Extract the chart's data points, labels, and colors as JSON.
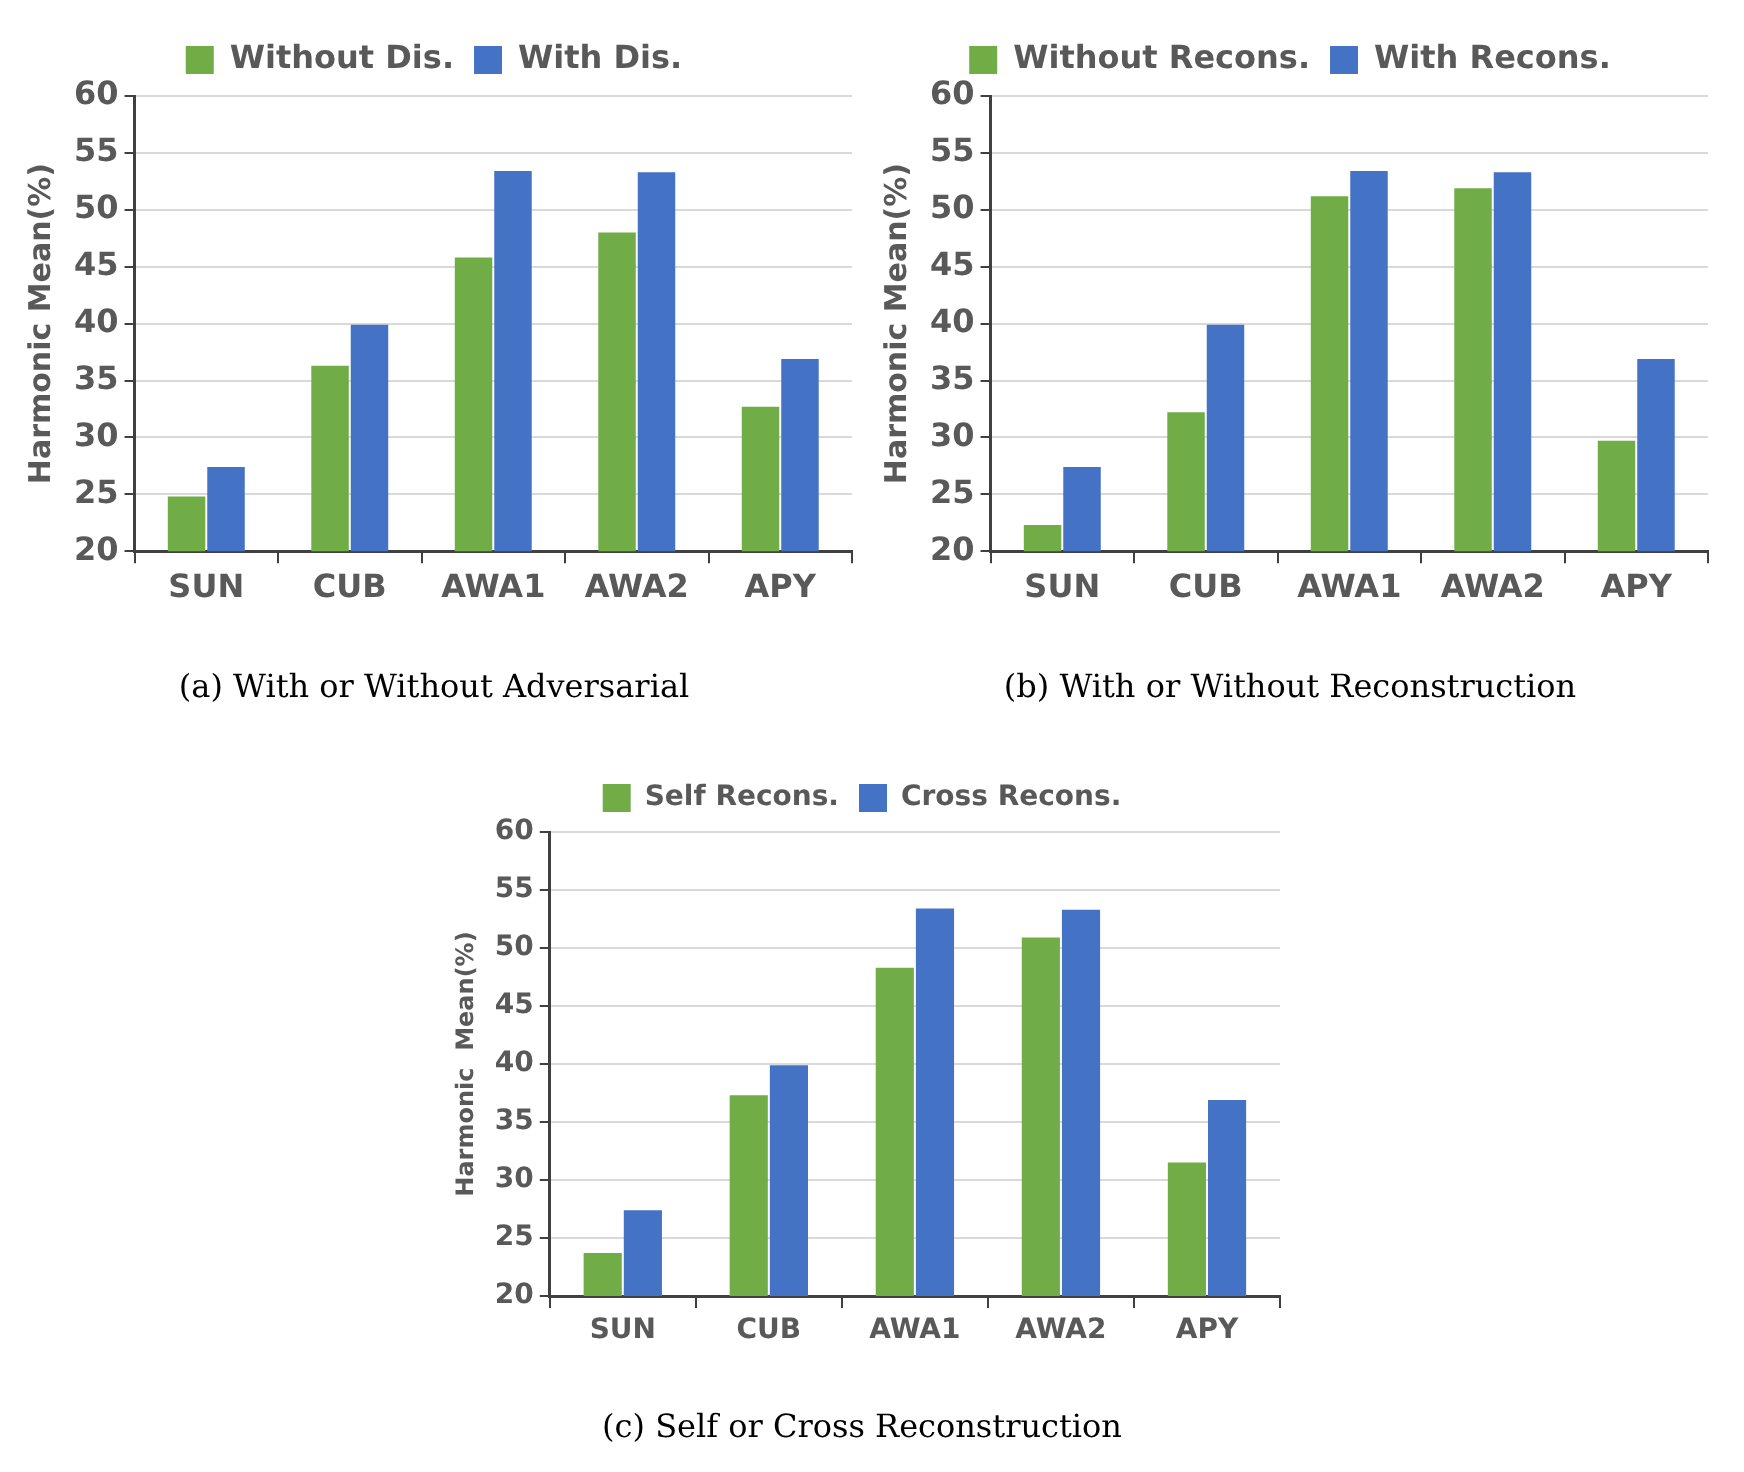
{
  "chart_data": [
    {
      "type": "bar",
      "title": "(a) With or Without Adversarial",
      "ylabel": "Harmonic Mean(%)",
      "categories": [
        "SUN",
        "CUB",
        "AWA1",
        "AWA2",
        "APY"
      ],
      "series": [
        {
          "name": "Without Dis.",
          "color": "#70ad47",
          "values": [
            24.8,
            36.3,
            45.8,
            48.0,
            32.7
          ]
        },
        {
          "name": "With Dis.",
          "color": "#4472c4",
          "values": [
            27.4,
            39.9,
            53.4,
            53.3,
            36.9
          ]
        }
      ],
      "ylim": [
        20,
        60
      ],
      "yticks": [
        20,
        25,
        30,
        35,
        40,
        45,
        50,
        55,
        60
      ],
      "grid": "y",
      "legend": "top"
    },
    {
      "type": "bar",
      "title": "(b) With or Without Reconstruction",
      "ylabel": "Harmonic Mean(%)",
      "categories": [
        "SUN",
        "CUB",
        "AWA1",
        "AWA2",
        "APY"
      ],
      "series": [
        {
          "name": "Without Recons.",
          "color": "#70ad47",
          "values": [
            22.3,
            32.2,
            51.2,
            51.9,
            29.7
          ]
        },
        {
          "name": "With Recons.",
          "color": "#4472c4",
          "values": [
            27.4,
            39.9,
            53.4,
            53.3,
            36.9
          ]
        }
      ],
      "ylim": [
        20,
        60
      ],
      "yticks": [
        20,
        25,
        30,
        35,
        40,
        45,
        50,
        55,
        60
      ],
      "grid": "y",
      "legend": "top"
    },
    {
      "type": "bar",
      "title": "(c) Self or Cross Reconstruction",
      "ylabel": "Harmonic  Mean(%)",
      "categories": [
        "SUN",
        "CUB",
        "AWA1",
        "AWA2",
        "APY"
      ],
      "series": [
        {
          "name": "Self Recons.",
          "color": "#70ad47",
          "values": [
            23.7,
            37.3,
            48.3,
            50.9,
            31.5
          ]
        },
        {
          "name": "Cross Recons.",
          "color": "#4472c4",
          "values": [
            27.4,
            39.9,
            53.4,
            53.3,
            36.9
          ]
        }
      ],
      "ylim": [
        20,
        60
      ],
      "yticks": [
        20,
        25,
        30,
        35,
        40,
        45,
        50,
        55,
        60
      ],
      "grid": "y",
      "legend": "top"
    }
  ]
}
